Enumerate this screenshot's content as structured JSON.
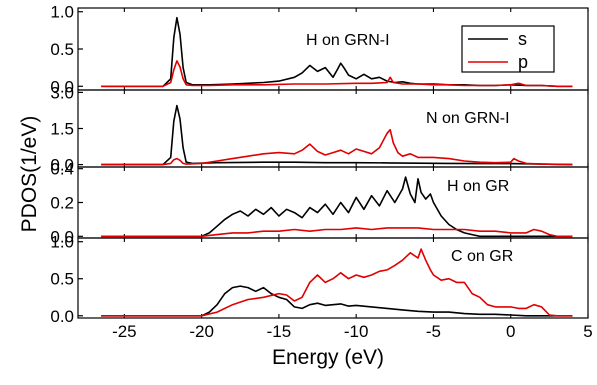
{
  "figure": {
    "ylabel": "PDOS(1/eV)",
    "xlabel": "Energy (eV)",
    "x_ticks": [
      "-25",
      "-20",
      "-15",
      "-10",
      "-5",
      "0",
      "5"
    ]
  },
  "legend": {
    "items": [
      {
        "label": "s",
        "color": "#000000"
      },
      {
        "label": "p",
        "color": "#e00000"
      }
    ]
  },
  "colors": {
    "s": "#000000",
    "p": "#e00000"
  },
  "chart_data": [
    {
      "type": "line",
      "panel_label": "H on GRN-I",
      "xlim": [
        -28,
        5
      ],
      "ylim": [
        -0.05,
        1.05
      ],
      "yticks": [
        0.0,
        0.5,
        1.0
      ],
      "ytick_labels": [
        "0.0",
        "0.5",
        "1.0"
      ],
      "series": [
        {
          "name": "s",
          "x": [
            -26.5,
            -22.5,
            -22.0,
            -21.8,
            -21.6,
            -21.4,
            -21.2,
            -21.0,
            -20.6,
            -19.5,
            -18.0,
            -16.0,
            -15.0,
            -14.0,
            -13.5,
            -13.0,
            -12.5,
            -12.0,
            -11.5,
            -11.2,
            -11.0,
            -10.8,
            -10.5,
            -10.0,
            -9.5,
            -9.0,
            -8.5,
            -8.0,
            -7.5,
            -7.0,
            -6.5,
            -6.0,
            -5.0,
            -4.0,
            -3.0,
            -2.0,
            -1.0,
            0.0,
            1.0,
            2.0,
            3.0,
            4.0
          ],
          "y": [
            0.0,
            0.0,
            0.1,
            0.65,
            0.92,
            0.7,
            0.25,
            0.05,
            0.02,
            0.02,
            0.03,
            0.05,
            0.07,
            0.12,
            0.18,
            0.28,
            0.2,
            0.25,
            0.12,
            0.23,
            0.31,
            0.25,
            0.15,
            0.1,
            0.16,
            0.1,
            0.12,
            0.07,
            0.05,
            0.06,
            0.04,
            0.03,
            0.03,
            0.02,
            0.02,
            0.01,
            0.01,
            0.02,
            0.01,
            0.01,
            0.0,
            0.0
          ]
        },
        {
          "name": "p",
          "x": [
            -26.5,
            -22.5,
            -22.0,
            -21.8,
            -21.6,
            -21.4,
            -21.2,
            -21.0,
            -20.6,
            -19.5,
            -18.0,
            -16.0,
            -14.0,
            -12.0,
            -10.0,
            -9.0,
            -8.0,
            -7.8,
            -7.6,
            -7.0,
            -6.0,
            -5.0,
            -4.0,
            -3.0,
            -2.0,
            -1.0,
            0.0,
            0.5,
            1.0,
            2.0,
            3.0,
            4.0
          ],
          "y": [
            0.0,
            0.0,
            0.05,
            0.22,
            0.34,
            0.26,
            0.1,
            0.02,
            0.01,
            0.01,
            0.02,
            0.02,
            0.03,
            0.03,
            0.04,
            0.04,
            0.05,
            0.12,
            0.05,
            0.03,
            0.03,
            0.02,
            0.02,
            0.01,
            0.01,
            0.01,
            0.02,
            0.04,
            0.01,
            0.01,
            0.0,
            0.0
          ]
        }
      ]
    },
    {
      "type": "line",
      "panel_label": "N on GRN-I",
      "xlim": [
        -28,
        5
      ],
      "ylim": [
        -0.1,
        3.1
      ],
      "yticks": [
        0.0,
        1.5,
        3.0
      ],
      "ytick_labels": [
        "0.0",
        "1.5",
        "3.0"
      ],
      "series": [
        {
          "name": "s",
          "x": [
            -26.5,
            -22.5,
            -22.0,
            -21.8,
            -21.6,
            -21.4,
            -21.2,
            -21.0,
            -20.6,
            -19.0,
            -16.0,
            -14.0,
            -12.0,
            -10.0,
            -8.0,
            -6.0,
            -4.0,
            -2.0,
            0.0,
            2.0,
            4.0
          ],
          "y": [
            0.0,
            0.0,
            0.3,
            1.8,
            2.45,
            1.9,
            0.7,
            0.1,
            0.05,
            0.08,
            0.1,
            0.1,
            0.08,
            0.08,
            0.07,
            0.06,
            0.05,
            0.04,
            0.04,
            0.02,
            0.0
          ]
        },
        {
          "name": "p",
          "x": [
            -26.5,
            -22.5,
            -22.0,
            -21.8,
            -21.6,
            -21.4,
            -21.2,
            -21.0,
            -20.0,
            -19.0,
            -18.0,
            -17.0,
            -16.0,
            -15.0,
            -14.0,
            -13.5,
            -13.0,
            -12.5,
            -12.0,
            -11.5,
            -11.0,
            -10.5,
            -10.0,
            -9.5,
            -9.0,
            -8.5,
            -8.0,
            -7.8,
            -7.6,
            -7.3,
            -7.0,
            -6.5,
            -6.0,
            -5.0,
            -4.0,
            -3.0,
            -2.0,
            -1.0,
            0.0,
            0.2,
            0.5,
            1.0,
            2.0,
            3.0,
            4.0
          ],
          "y": [
            0.0,
            0.0,
            0.05,
            0.2,
            0.25,
            0.18,
            0.05,
            0.02,
            0.05,
            0.15,
            0.25,
            0.35,
            0.45,
            0.5,
            0.45,
            0.6,
            0.85,
            0.55,
            0.4,
            0.5,
            0.6,
            0.45,
            0.65,
            0.55,
            0.45,
            0.7,
            1.3,
            1.45,
            0.9,
            0.5,
            0.35,
            0.45,
            0.3,
            0.3,
            0.25,
            0.15,
            0.1,
            0.08,
            0.1,
            0.25,
            0.15,
            0.05,
            0.02,
            0.01,
            0.0
          ]
        }
      ]
    },
    {
      "type": "line",
      "panel_label": "H on GR",
      "xlim": [
        -28,
        5
      ],
      "ylim": [
        -0.01,
        0.41
      ],
      "yticks": [
        0.0,
        0.2,
        0.4
      ],
      "ytick_labels": [
        "0.0",
        "0.2",
        "0.4"
      ],
      "series": [
        {
          "name": "s",
          "x": [
            -26.5,
            -20.0,
            -19.5,
            -19.0,
            -18.5,
            -18.0,
            -17.5,
            -17.0,
            -16.5,
            -16.0,
            -15.5,
            -15.0,
            -14.5,
            -14.0,
            -13.5,
            -13.0,
            -12.5,
            -12.0,
            -11.5,
            -11.0,
            -10.5,
            -10.0,
            -9.5,
            -9.0,
            -8.5,
            -8.0,
            -7.5,
            -7.0,
            -6.8,
            -6.5,
            -6.2,
            -6.0,
            -5.8,
            -5.5,
            -5.2,
            -5.0,
            -4.5,
            -4.0,
            -3.5,
            -3.0,
            -2.5,
            -2.0,
            -1.0,
            0.0,
            1.0,
            2.0,
            3.0,
            4.0
          ],
          "y": [
            0.0,
            0.0,
            0.02,
            0.06,
            0.1,
            0.13,
            0.15,
            0.12,
            0.16,
            0.13,
            0.17,
            0.12,
            0.16,
            0.14,
            0.11,
            0.17,
            0.14,
            0.19,
            0.13,
            0.2,
            0.14,
            0.23,
            0.16,
            0.24,
            0.18,
            0.27,
            0.2,
            0.28,
            0.35,
            0.25,
            0.2,
            0.34,
            0.26,
            0.22,
            0.25,
            0.2,
            0.12,
            0.07,
            0.04,
            0.02,
            0.01,
            0.0,
            0.0,
            0.0,
            0.0,
            0.0,
            0.0,
            0.0
          ]
        },
        {
          "name": "p",
          "x": [
            -26.5,
            -20.0,
            -19.0,
            -18.0,
            -17.0,
            -16.0,
            -15.0,
            -14.0,
            -13.0,
            -12.0,
            -11.0,
            -10.0,
            -9.0,
            -8.0,
            -7.0,
            -6.0,
            -5.0,
            -4.0,
            -3.0,
            -2.0,
            -1.0,
            0.0,
            1.0,
            1.5,
            2.0,
            2.5,
            3.0,
            4.0
          ],
          "y": [
            0.0,
            0.0,
            0.01,
            0.02,
            0.02,
            0.03,
            0.03,
            0.04,
            0.03,
            0.04,
            0.04,
            0.05,
            0.04,
            0.05,
            0.05,
            0.05,
            0.04,
            0.04,
            0.04,
            0.03,
            0.03,
            0.02,
            0.02,
            0.04,
            0.03,
            0.01,
            0.0,
            0.0
          ]
        }
      ]
    },
    {
      "type": "line",
      "panel_label": "C on GR",
      "xlim": [
        -28,
        5
      ],
      "ylim": [
        -0.03,
        1.05
      ],
      "yticks": [
        0.0,
        0.5,
        1.0
      ],
      "ytick_labels": [
        "0.0",
        "0.5",
        "1.0"
      ],
      "series": [
        {
          "name": "s",
          "x": [
            -26.5,
            -20.0,
            -19.5,
            -19.0,
            -18.5,
            -18.0,
            -17.5,
            -17.0,
            -16.5,
            -16.0,
            -15.5,
            -15.0,
            -14.5,
            -14.0,
            -13.5,
            -13.0,
            -12.5,
            -12.0,
            -11.5,
            -11.0,
            -10.5,
            -10.0,
            -9.0,
            -8.0,
            -7.0,
            -6.0,
            -5.0,
            -4.0,
            -3.0,
            -2.0,
            -1.0,
            0.0,
            1.0,
            2.0,
            3.0,
            4.0
          ],
          "y": [
            0.0,
            0.0,
            0.05,
            0.15,
            0.3,
            0.38,
            0.4,
            0.38,
            0.33,
            0.38,
            0.3,
            0.25,
            0.22,
            0.12,
            0.1,
            0.15,
            0.17,
            0.14,
            0.15,
            0.16,
            0.13,
            0.14,
            0.12,
            0.1,
            0.08,
            0.06,
            0.05,
            0.05,
            0.03,
            0.02,
            0.02,
            0.01,
            0.0,
            0.0,
            0.0,
            0.0
          ]
        },
        {
          "name": "p",
          "x": [
            -26.5,
            -20.0,
            -19.0,
            -18.0,
            -17.0,
            -16.0,
            -15.0,
            -14.5,
            -14.0,
            -13.5,
            -13.0,
            -12.5,
            -12.0,
            -11.5,
            -11.0,
            -10.5,
            -10.0,
            -9.5,
            -9.0,
            -8.5,
            -8.0,
            -7.5,
            -7.0,
            -6.5,
            -6.0,
            -5.8,
            -5.5,
            -5.2,
            -5.0,
            -4.5,
            -4.0,
            -3.5,
            -3.0,
            -2.5,
            -2.0,
            -1.5,
            -1.0,
            -0.5,
            0.0,
            0.5,
            1.0,
            1.5,
            2.0,
            2.5,
            3.0,
            4.0
          ],
          "y": [
            0.0,
            0.0,
            0.05,
            0.15,
            0.22,
            0.25,
            0.3,
            0.28,
            0.2,
            0.25,
            0.45,
            0.55,
            0.45,
            0.5,
            0.58,
            0.5,
            0.55,
            0.52,
            0.55,
            0.6,
            0.62,
            0.68,
            0.75,
            0.85,
            0.78,
            0.9,
            0.75,
            0.62,
            0.55,
            0.48,
            0.5,
            0.45,
            0.45,
            0.3,
            0.25,
            0.15,
            0.12,
            0.12,
            0.12,
            0.1,
            0.1,
            0.15,
            0.12,
            0.01,
            0.0,
            0.0
          ]
        }
      ]
    }
  ]
}
